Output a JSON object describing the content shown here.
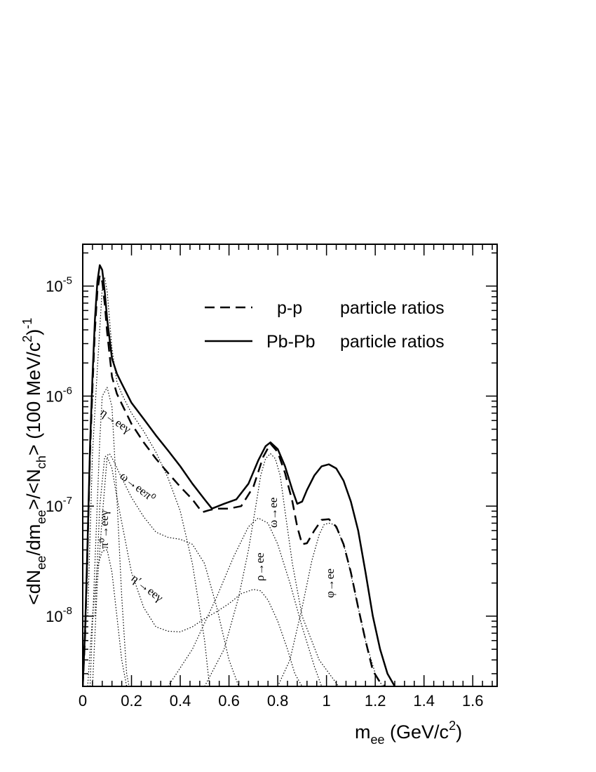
{
  "chart_data": {
    "type": "line",
    "x_scale": "linear",
    "y_scale": "log",
    "xlim": [
      0,
      1.7
    ],
    "ylim": [
      2.3e-09,
      2.4e-05
    ],
    "x_ticks": [
      "0",
      "0.2",
      "0.4",
      "0.6",
      "0.8",
      "1",
      "1.2",
      "1.4",
      "1.6"
    ],
    "y_ticks": [
      {
        "base": "10",
        "exp": "-8"
      },
      {
        "base": "10",
        "exp": "-7"
      },
      {
        "base": "10",
        "exp": "-6"
      },
      {
        "base": "10",
        "exp": "-5"
      }
    ],
    "xlabel": {
      "main": "m",
      "sub": "ee",
      "rest": " (GeV/c",
      "sup": "2",
      "close": ")"
    },
    "ylabel": {
      "p1": "<dN",
      "s1": "ee",
      "p2": "/dm",
      "s2": "ee",
      "p3": ">/<N",
      "s3": "ch",
      "p4": "> (100 MeV/c",
      "sup1": "2",
      "p5": ")",
      "sup2": "-1"
    },
    "legend": [
      {
        "label": "p-p",
        "desc": "particle ratios",
        "style": "dashed"
      },
      {
        "label": "Pb-Pb",
        "desc": "particle ratios",
        "style": "solid"
      }
    ],
    "annotations": [
      {
        "text": "π⁰→eeγ"
      },
      {
        "text": "η→eeγ"
      },
      {
        "text": "ω→eeπ⁰"
      },
      {
        "text": "η′→eeγ"
      },
      {
        "text": "ρ→ee"
      },
      {
        "text": "ω→ee"
      },
      {
        "text": "φ→ee"
      }
    ],
    "series": [
      {
        "style": "solid",
        "x": [
          0.0,
          0.01,
          0.02,
          0.03,
          0.04,
          0.05,
          0.06,
          0.07,
          0.08,
          0.09,
          0.1,
          0.12,
          0.14,
          0.16,
          0.2,
          0.25,
          0.3,
          0.35,
          0.4,
          0.45,
          0.5,
          0.53,
          0.58,
          0.63,
          0.68,
          0.72,
          0.75,
          0.77,
          0.8,
          0.83,
          0.86,
          0.88,
          0.9,
          0.92,
          0.95,
          0.98,
          1.01,
          1.04,
          1.07,
          1.1,
          1.13,
          1.16,
          1.19,
          1.22,
          1.25,
          1.28
        ],
        "y": [
          2.3e-09,
          8e-09,
          5e-08,
          3.5e-07,
          1.5e-06,
          5e-06,
          1.1e-05,
          1.55e-05,
          1.4e-05,
          9e-06,
          5e-06,
          2.2e-06,
          1.6e-06,
          1.3e-06,
          8.7e-07,
          6.2e-07,
          4.4e-07,
          3.2e-07,
          2.3e-07,
          1.6e-07,
          1.15e-07,
          9.5e-08,
          1.05e-07,
          1.15e-07,
          1.6e-07,
          2.6e-07,
          3.5e-07,
          3.8e-07,
          3.3e-07,
          2.3e-07,
          1.4e-07,
          1.05e-07,
          1.1e-07,
          1.4e-07,
          1.9e-07,
          2.3e-07,
          2.4e-07,
          2.2e-07,
          1.7e-07,
          1.1e-07,
          6e-08,
          2.5e-08,
          1e-08,
          5e-09,
          3e-09,
          2.3e-09
        ]
      },
      {
        "style": "dashed",
        "x": [
          0.0,
          0.01,
          0.02,
          0.03,
          0.04,
          0.05,
          0.06,
          0.07,
          0.08,
          0.09,
          0.1,
          0.12,
          0.14,
          0.16,
          0.2,
          0.25,
          0.3,
          0.35,
          0.4,
          0.45,
          0.49,
          0.52,
          0.55,
          0.6,
          0.65,
          0.7,
          0.74,
          0.77,
          0.8,
          0.83,
          0.86,
          0.88,
          0.9,
          0.92,
          0.95,
          0.98,
          1.01,
          1.04,
          1.07,
          1.1,
          1.13,
          1.16,
          1.19,
          1.22,
          1.24
        ],
        "y": [
          2.3e-09,
          7e-09,
          4.5e-08,
          3e-07,
          1.2e-06,
          4e-06,
          9e-06,
          1.25e-05,
          1.1e-05,
          7e-06,
          3.8e-06,
          1.5e-06,
          1.05e-06,
          8.5e-07,
          5.6e-07,
          3.8e-07,
          2.7e-07,
          2e-07,
          1.5e-07,
          1.15e-07,
          8.8e-08,
          9.2e-08,
          9.5e-08,
          9.5e-08,
          1e-07,
          1.5e-07,
          2.8e-07,
          3.7e-07,
          3.1e-07,
          2e-07,
          1.1e-07,
          6.5e-08,
          4.5e-08,
          4.6e-08,
          6e-08,
          7.5e-08,
          7.6e-08,
          6.5e-08,
          4.5e-08,
          2.5e-08,
          1.2e-08,
          6e-09,
          3.2e-09,
          2.5e-09,
          2.3e-09
        ]
      },
      {
        "style": "dotted",
        "x": [
          0.02,
          0.04,
          0.06,
          0.08,
          0.1,
          0.12,
          0.14,
          0.16,
          0.18
        ],
        "y": [
          2.3e-09,
          1e-08,
          2.8e-08,
          3.9e-08,
          4e-08,
          2.5e-08,
          1e-08,
          4e-09,
          2.3e-09
        ]
      },
      {
        "style": "dotted",
        "x": [
          0.02,
          0.04,
          0.06,
          0.08,
          0.09,
          0.1,
          0.12,
          0.14,
          0.16,
          0.18,
          0.2,
          0.25,
          0.3,
          0.35,
          0.4,
          0.45,
          0.5,
          0.52
        ],
        "y": [
          1e-08,
          3e-07,
          1.8e-06,
          9.5e-06,
          1.2e-05,
          9e-06,
          2.7e-06,
          1.35e-06,
          1.05e-06,
          8.5e-07,
          7e-07,
          4.8e-07,
          3.1e-07,
          1.8e-07,
          9e-08,
          3e-08,
          6e-09,
          2.3e-09
        ]
      },
      {
        "style": "dotted",
        "x": [
          0.03,
          0.05,
          0.07,
          0.08,
          0.1,
          0.12,
          0.14,
          0.16,
          0.18,
          0.19
        ],
        "y": [
          2.3e-09,
          3e-08,
          4e-07,
          1e-06,
          1.2e-06,
          8e-07,
          1.2e-07,
          1.5e-08,
          3e-09,
          2.3e-09
        ]
      },
      {
        "style": "dotted",
        "x": [
          0.05,
          0.07,
          0.09,
          0.11,
          0.13,
          0.15,
          0.2,
          0.25,
          0.3,
          0.35,
          0.4,
          0.45,
          0.5,
          0.55,
          0.6,
          0.64
        ],
        "y": [
          1e-08,
          1e-07,
          2.8e-07,
          3e-07,
          2.5e-07,
          2e-07,
          1.2e-07,
          8e-08,
          5.8e-08,
          5.2e-08,
          5e-08,
          4.5e-08,
          3e-08,
          1.2e-08,
          4e-09,
          2.3e-09
        ]
      },
      {
        "style": "dotted",
        "x": [
          0.04,
          0.06,
          0.08,
          0.1,
          0.12,
          0.14,
          0.2,
          0.25,
          0.3,
          0.35,
          0.4,
          0.45,
          0.5,
          0.55,
          0.6,
          0.65,
          0.7,
          0.73,
          0.76,
          0.8,
          0.84,
          0.87,
          0.9
        ],
        "y": [
          2.3e-09,
          2e-08,
          8e-08,
          2.8e-07,
          2.2e-07,
          1.2e-07,
          2.5e-08,
          1.2e-08,
          8e-09,
          7.3e-09,
          7.2e-09,
          8e-09,
          9.5e-09,
          1.1e-08,
          1.3e-08,
          1.6e-08,
          1.75e-08,
          1.7e-08,
          1.4e-08,
          9e-09,
          5e-09,
          3e-09,
          2.3e-09
        ]
      },
      {
        "style": "dotted",
        "x": [
          0.35,
          0.45,
          0.55,
          0.62,
          0.68,
          0.72,
          0.76,
          0.8,
          0.85,
          0.9,
          0.95,
          0.98
        ],
        "y": [
          2.3e-09,
          5e-09,
          1.5e-08,
          3.5e-08,
          6.5e-08,
          7.8e-08,
          7e-08,
          4.5e-08,
          2e-08,
          8e-09,
          3.5e-09,
          2.3e-09
        ]
      },
      {
        "style": "dotted",
        "x": [
          0.5,
          0.58,
          0.64,
          0.68,
          0.71,
          0.73,
          0.75,
          0.77,
          0.79,
          0.81,
          0.83,
          0.86,
          0.9,
          0.97,
          1.05
        ],
        "y": [
          2.3e-09,
          5e-09,
          1.5e-08,
          4e-08,
          1e-07,
          1.9e-07,
          2.7e-07,
          3e-07,
          2.7e-07,
          1.9e-07,
          9e-08,
          3e-08,
          1e-08,
          4e-09,
          2.3e-09
        ]
      },
      {
        "style": "dotted",
        "x": [
          0.8,
          0.85,
          0.9,
          0.94,
          0.97,
          0.99,
          1.01,
          1.03,
          1.05,
          1.08,
          1.12,
          1.16,
          1.2,
          1.23
        ],
        "y": [
          2.3e-09,
          4e-09,
          1.2e-08,
          3.2e-08,
          5.5e-08,
          6.8e-08,
          7e-08,
          6.8e-08,
          5.8e-08,
          3.8e-08,
          1.5e-08,
          6e-09,
          3e-09,
          2.3e-09
        ]
      }
    ]
  }
}
